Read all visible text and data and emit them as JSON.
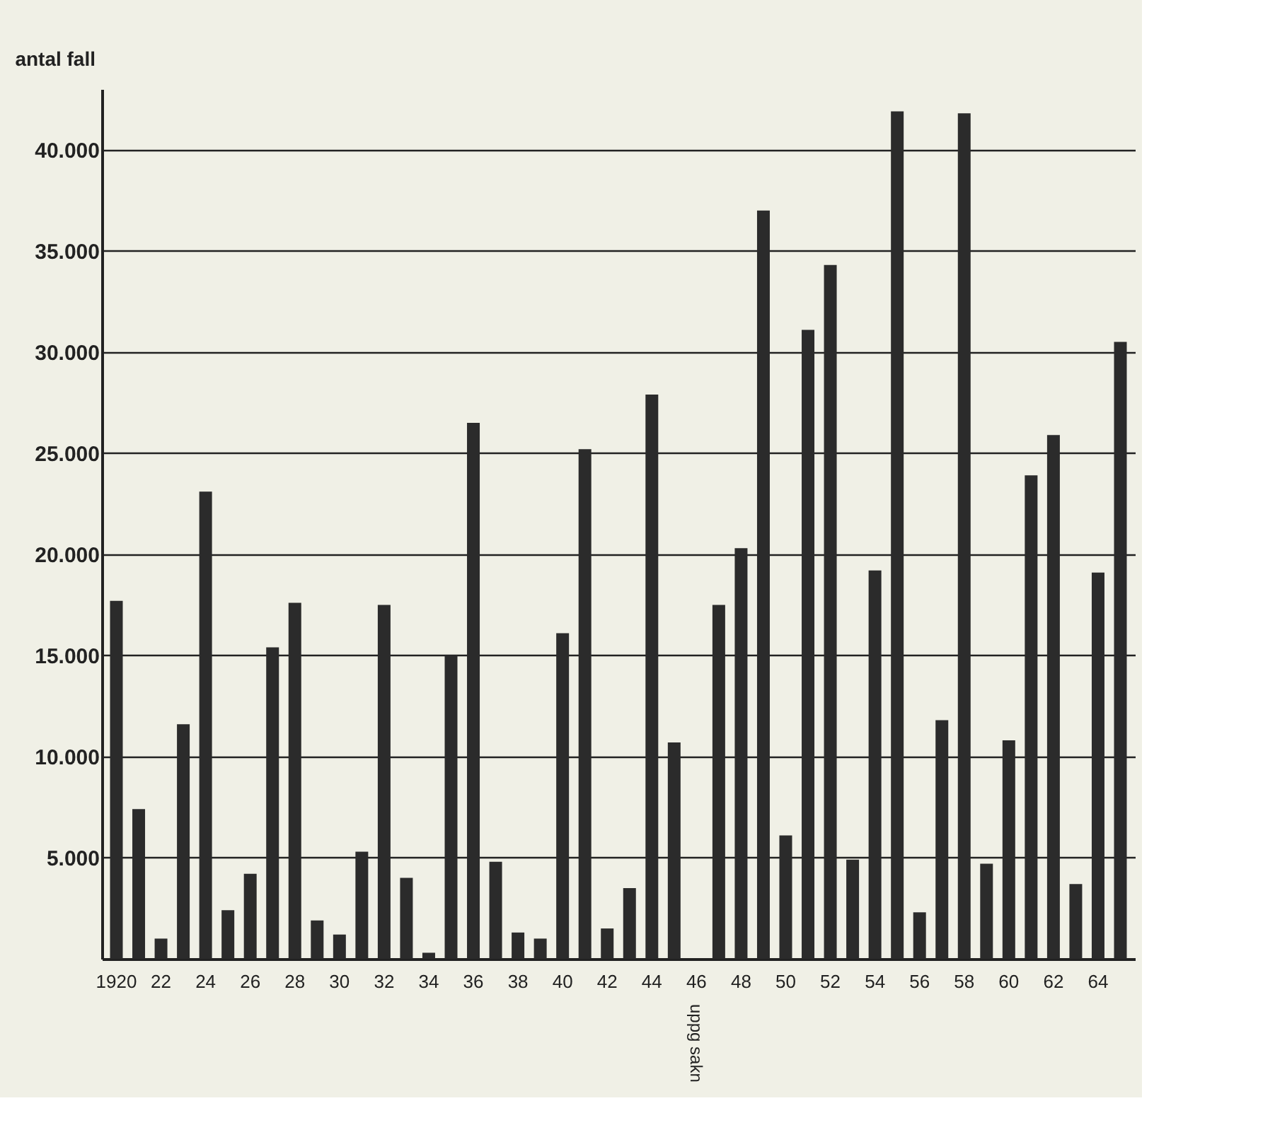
{
  "chart_data": {
    "type": "bar",
    "ylabel": "antal fall",
    "categories": [
      "1920",
      null,
      "22",
      null,
      "24",
      null,
      "26",
      null,
      "28",
      null,
      "30",
      null,
      "32",
      null,
      "34",
      null,
      "36",
      null,
      "38",
      null,
      "40",
      null,
      "42",
      null,
      "44",
      null,
      "46",
      null,
      "48",
      null,
      "50",
      null,
      "52",
      null,
      "54",
      null,
      "56",
      null,
      "58",
      null,
      "60",
      null,
      "62",
      null,
      "64",
      null
    ],
    "values": [
      17700,
      7400,
      1000,
      11600,
      23100,
      2400,
      4200,
      15400,
      17600,
      1900,
      1200,
      5300,
      17500,
      4000,
      300,
      15000,
      26500,
      4800,
      1300,
      1000,
      16100,
      25200,
      1500,
      3500,
      27900,
      10700,
      null,
      17500,
      20300,
      37000,
      6100,
      31100,
      34300,
      4900,
      19200,
      41900,
      2300,
      11800,
      41800,
      4700,
      10800,
      23900,
      25900,
      3700,
      19100,
      30500
    ],
    "color": "#2b2b2b",
    "ylim": [
      0,
      43000
    ],
    "yticks": [
      {
        "value": 5000,
        "label": "5.000"
      },
      {
        "value": 10000,
        "label": "10.000"
      },
      {
        "value": 15000,
        "label": "15.000"
      },
      {
        "value": 20000,
        "label": "20.000"
      },
      {
        "value": 25000,
        "label": "25.000"
      },
      {
        "value": 30000,
        "label": "30.000"
      },
      {
        "value": 35000,
        "label": "35.000"
      },
      {
        "value": 40000,
        "label": "40.000"
      }
    ],
    "grid": "y",
    "annotations": [
      "uppg sakn"
    ]
  }
}
